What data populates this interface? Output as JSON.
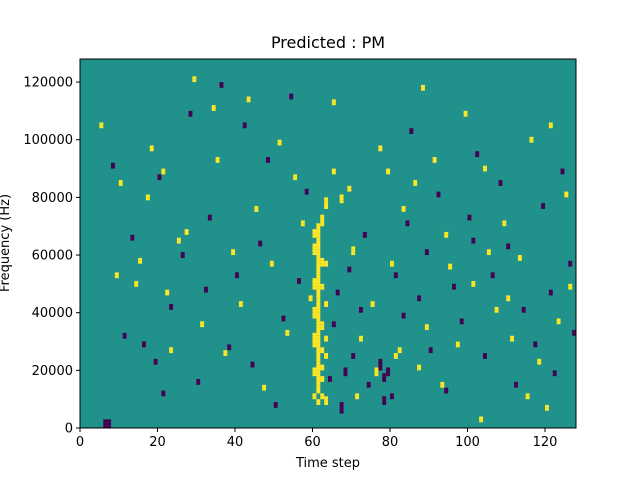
{
  "chart_data": {
    "type": "heatmap",
    "title": "Predicted : PM",
    "xlabel": "Time step",
    "ylabel": "Frequency (Hz)",
    "xlim": [
      0,
      128
    ],
    "ylim": [
      0,
      128000
    ],
    "x_ticks": [
      "0",
      "20",
      "40",
      "60",
      "80",
      "100",
      "120"
    ],
    "x_tick_values": [
      0,
      20,
      40,
      60,
      80,
      100,
      120
    ],
    "y_ticks": [
      "0",
      "20000",
      "40000",
      "60000",
      "80000",
      "100000",
      "120000"
    ],
    "y_tick_values": [
      0,
      20000,
      40000,
      60000,
      80000,
      100000,
      120000
    ],
    "grid": false,
    "legend": "none",
    "n_time_steps": 128,
    "n_freq_bins": 128,
    "value_levels": [
      -1,
      0,
      1
    ],
    "colors": {
      "-1": "#440154",
      "0": "#21918c",
      "1": "#fde725"
    },
    "background_value": 0,
    "high_cells": [
      [
        5,
        104
      ],
      [
        5,
        105
      ],
      [
        9,
        52
      ],
      [
        9,
        53
      ],
      [
        10,
        84
      ],
      [
        10,
        85
      ],
      [
        14,
        49
      ],
      [
        14,
        50
      ],
      [
        15,
        57
      ],
      [
        15,
        58
      ],
      [
        17,
        79
      ],
      [
        17,
        80
      ],
      [
        18,
        96
      ],
      [
        18,
        97
      ],
      [
        21,
        88
      ],
      [
        21,
        89
      ],
      [
        22,
        46
      ],
      [
        22,
        47
      ],
      [
        23,
        26
      ],
      [
        23,
        27
      ],
      [
        25,
        64
      ],
      [
        25,
        65
      ],
      [
        27,
        67
      ],
      [
        27,
        68
      ],
      [
        29,
        120
      ],
      [
        29,
        121
      ],
      [
        31,
        35
      ],
      [
        31,
        36
      ],
      [
        34,
        110
      ],
      [
        34,
        111
      ],
      [
        35,
        92
      ],
      [
        35,
        93
      ],
      [
        37,
        25
      ],
      [
        37,
        26
      ],
      [
        39,
        60
      ],
      [
        39,
        61
      ],
      [
        41,
        42
      ],
      [
        41,
        43
      ],
      [
        43,
        113
      ],
      [
        43,
        114
      ],
      [
        45,
        75
      ],
      [
        45,
        76
      ],
      [
        47,
        13
      ],
      [
        47,
        14
      ],
      [
        49,
        56
      ],
      [
        49,
        57
      ],
      [
        51,
        98
      ],
      [
        51,
        99
      ],
      [
        53,
        32
      ],
      [
        53,
        33
      ],
      [
        55,
        86
      ],
      [
        55,
        87
      ],
      [
        57,
        70
      ],
      [
        57,
        71
      ],
      [
        59,
        44
      ],
      [
        59,
        45
      ],
      [
        60,
        10
      ],
      [
        60,
        11
      ],
      [
        60,
        18
      ],
      [
        60,
        19
      ],
      [
        60,
        20
      ],
      [
        60,
        28
      ],
      [
        60,
        29
      ],
      [
        60,
        30
      ],
      [
        60,
        31
      ],
      [
        60,
        32
      ],
      [
        60,
        38
      ],
      [
        60,
        39
      ],
      [
        60,
        40
      ],
      [
        60,
        41
      ],
      [
        60,
        48
      ],
      [
        60,
        49
      ],
      [
        60,
        50
      ],
      [
        60,
        51
      ],
      [
        60,
        60
      ],
      [
        60,
        61
      ],
      [
        60,
        62
      ],
      [
        60,
        63
      ],
      [
        60,
        66
      ],
      [
        60,
        67
      ],
      [
        60,
        68
      ],
      [
        61,
        8
      ],
      [
        61,
        9
      ],
      [
        61,
        12
      ],
      [
        61,
        13
      ],
      [
        61,
        14
      ],
      [
        61,
        15
      ],
      [
        61,
        16
      ],
      [
        61,
        17
      ],
      [
        61,
        18
      ],
      [
        61,
        19
      ],
      [
        61,
        20
      ],
      [
        61,
        21
      ],
      [
        61,
        22
      ],
      [
        61,
        23
      ],
      [
        61,
        24
      ],
      [
        61,
        25
      ],
      [
        61,
        26
      ],
      [
        61,
        27
      ],
      [
        61,
        28
      ],
      [
        61,
        29
      ],
      [
        61,
        30
      ],
      [
        61,
        31
      ],
      [
        61,
        32
      ],
      [
        61,
        33
      ],
      [
        61,
        34
      ],
      [
        61,
        35
      ],
      [
        61,
        36
      ],
      [
        61,
        37
      ],
      [
        61,
        38
      ],
      [
        61,
        39
      ],
      [
        61,
        40
      ],
      [
        61,
        41
      ],
      [
        61,
        42
      ],
      [
        61,
        43
      ],
      [
        61,
        44
      ],
      [
        61,
        45
      ],
      [
        61,
        46
      ],
      [
        61,
        47
      ],
      [
        61,
        48
      ],
      [
        61,
        49
      ],
      [
        61,
        50
      ],
      [
        61,
        51
      ],
      [
        61,
        52
      ],
      [
        61,
        53
      ],
      [
        61,
        54
      ],
      [
        61,
        55
      ],
      [
        61,
        56
      ],
      [
        61,
        57
      ],
      [
        61,
        58
      ],
      [
        61,
        59
      ],
      [
        61,
        60
      ],
      [
        61,
        61
      ],
      [
        61,
        62
      ],
      [
        61,
        63
      ],
      [
        61,
        64
      ],
      [
        61,
        65
      ],
      [
        61,
        66
      ],
      [
        61,
        67
      ],
      [
        61,
        68
      ],
      [
        61,
        69
      ],
      [
        61,
        70
      ],
      [
        62,
        10
      ],
      [
        62,
        11
      ],
      [
        62,
        16
      ],
      [
        62,
        17
      ],
      [
        62,
        20
      ],
      [
        62,
        21
      ],
      [
        62,
        26
      ],
      [
        62,
        27
      ],
      [
        62,
        34
      ],
      [
        62,
        35
      ],
      [
        62,
        36
      ],
      [
        62,
        48
      ],
      [
        62,
        49
      ],
      [
        62,
        56
      ],
      [
        62,
        57
      ],
      [
        62,
        58
      ],
      [
        62,
        70
      ],
      [
        62,
        71
      ],
      [
        62,
        72
      ],
      [
        62,
        73
      ],
      [
        63,
        8
      ],
      [
        63,
        9
      ],
      [
        63,
        10
      ],
      [
        63,
        24
      ],
      [
        63,
        25
      ],
      [
        63,
        30
      ],
      [
        63,
        31
      ],
      [
        63,
        42
      ],
      [
        63,
        43
      ],
      [
        63,
        56
      ],
      [
        63,
        57
      ],
      [
        63,
        76
      ],
      [
        63,
        77
      ],
      [
        63,
        78
      ],
      [
        63,
        79
      ],
      [
        65,
        88
      ],
      [
        65,
        89
      ],
      [
        65,
        112
      ],
      [
        65,
        113
      ],
      [
        67,
        78
      ],
      [
        67,
        79
      ],
      [
        67,
        80
      ],
      [
        69,
        82
      ],
      [
        69,
        83
      ],
      [
        70,
        60
      ],
      [
        70,
        61
      ],
      [
        70,
        62
      ],
      [
        71,
        10
      ],
      [
        71,
        11
      ],
      [
        72,
        30
      ],
      [
        72,
        31
      ],
      [
        75,
        42
      ],
      [
        75,
        43
      ],
      [
        76,
        18
      ],
      [
        76,
        19
      ],
      [
        76,
        20
      ],
      [
        77,
        96
      ],
      [
        77,
        97
      ],
      [
        79,
        88
      ],
      [
        79,
        89
      ],
      [
        80,
        56
      ],
      [
        80,
        57
      ],
      [
        81,
        24
      ],
      [
        81,
        25
      ],
      [
        82,
        26
      ],
      [
        82,
        27
      ],
      [
        83,
        75
      ],
      [
        83,
        76
      ],
      [
        86,
        84
      ],
      [
        86,
        85
      ],
      [
        87,
        20
      ],
      [
        87,
        21
      ],
      [
        88,
        117
      ],
      [
        88,
        118
      ],
      [
        89,
        34
      ],
      [
        89,
        35
      ],
      [
        91,
        92
      ],
      [
        91,
        93
      ],
      [
        93,
        14
      ],
      [
        93,
        15
      ],
      [
        94,
        66
      ],
      [
        94,
        67
      ],
      [
        95,
        55
      ],
      [
        95,
        56
      ],
      [
        97,
        28
      ],
      [
        97,
        29
      ],
      [
        99,
        108
      ],
      [
        99,
        109
      ],
      [
        101,
        49
      ],
      [
        101,
        50
      ],
      [
        103,
        2
      ],
      [
        103,
        3
      ],
      [
        104,
        89
      ],
      [
        104,
        90
      ],
      [
        105,
        60
      ],
      [
        105,
        61
      ],
      [
        107,
        40
      ],
      [
        107,
        41
      ],
      [
        109,
        70
      ],
      [
        109,
        71
      ],
      [
        110,
        44
      ],
      [
        110,
        45
      ],
      [
        111,
        30
      ],
      [
        111,
        31
      ],
      [
        113,
        58
      ],
      [
        113,
        59
      ],
      [
        115,
        10
      ],
      [
        115,
        11
      ],
      [
        116,
        99
      ],
      [
        116,
        100
      ],
      [
        118,
        22
      ],
      [
        118,
        23
      ],
      [
        120,
        6
      ],
      [
        120,
        7
      ],
      [
        121,
        104
      ],
      [
        121,
        105
      ],
      [
        123,
        36
      ],
      [
        123,
        37
      ],
      [
        125,
        80
      ],
      [
        125,
        81
      ],
      [
        126,
        48
      ],
      [
        126,
        49
      ]
    ],
    "low_cells": [
      [
        6,
        0
      ],
      [
        6,
        1
      ],
      [
        6,
        2
      ],
      [
        7,
        0
      ],
      [
        7,
        1
      ],
      [
        7,
        2
      ],
      [
        8,
        90
      ],
      [
        8,
        91
      ],
      [
        11,
        31
      ],
      [
        11,
        32
      ],
      [
        13,
        65
      ],
      [
        13,
        66
      ],
      [
        16,
        28
      ],
      [
        16,
        29
      ],
      [
        19,
        22
      ],
      [
        19,
        23
      ],
      [
        20,
        86
      ],
      [
        20,
        87
      ],
      [
        21,
        11
      ],
      [
        21,
        12
      ],
      [
        23,
        41
      ],
      [
        23,
        42
      ],
      [
        26,
        59
      ],
      [
        26,
        60
      ],
      [
        28,
        108
      ],
      [
        28,
        109
      ],
      [
        30,
        15
      ],
      [
        30,
        16
      ],
      [
        32,
        47
      ],
      [
        32,
        48
      ],
      [
        33,
        72
      ],
      [
        33,
        73
      ],
      [
        36,
        118
      ],
      [
        36,
        119
      ],
      [
        38,
        27
      ],
      [
        38,
        28
      ],
      [
        40,
        52
      ],
      [
        40,
        53
      ],
      [
        42,
        104
      ],
      [
        42,
        105
      ],
      [
        44,
        21
      ],
      [
        44,
        22
      ],
      [
        46,
        63
      ],
      [
        46,
        64
      ],
      [
        48,
        92
      ],
      [
        48,
        93
      ],
      [
        50,
        7
      ],
      [
        50,
        8
      ],
      [
        52,
        37
      ],
      [
        52,
        38
      ],
      [
        54,
        114
      ],
      [
        54,
        115
      ],
      [
        56,
        50
      ],
      [
        56,
        51
      ],
      [
        58,
        81
      ],
      [
        58,
        82
      ],
      [
        64,
        16
      ],
      [
        64,
        17
      ],
      [
        65,
        35
      ],
      [
        65,
        36
      ],
      [
        66,
        46
      ],
      [
        66,
        47
      ],
      [
        67,
        5
      ],
      [
        67,
        6
      ],
      [
        67,
        7
      ],
      [
        67,
        8
      ],
      [
        68,
        18
      ],
      [
        68,
        19
      ],
      [
        68,
        20
      ],
      [
        69,
        54
      ],
      [
        69,
        55
      ],
      [
        70,
        24
      ],
      [
        70,
        25
      ],
      [
        72,
        40
      ],
      [
        72,
        41
      ],
      [
        73,
        66
      ],
      [
        73,
        67
      ],
      [
        74,
        14
      ],
      [
        74,
        15
      ],
      [
        77,
        20
      ],
      [
        77,
        21
      ],
      [
        77,
        22
      ],
      [
        77,
        23
      ],
      [
        78,
        8
      ],
      [
        78,
        9
      ],
      [
        78,
        10
      ],
      [
        78,
        16
      ],
      [
        78,
        17
      ],
      [
        78,
        18
      ],
      [
        79,
        18
      ],
      [
        79,
        19
      ],
      [
        79,
        20
      ],
      [
        80,
        10
      ],
      [
        80,
        11
      ],
      [
        81,
        52
      ],
      [
        81,
        53
      ],
      [
        83,
        38
      ],
      [
        83,
        39
      ],
      [
        84,
        70
      ],
      [
        84,
        71
      ],
      [
        85,
        102
      ],
      [
        85,
        103
      ],
      [
        87,
        44
      ],
      [
        87,
        45
      ],
      [
        89,
        60
      ],
      [
        89,
        61
      ],
      [
        90,
        26
      ],
      [
        90,
        27
      ],
      [
        92,
        80
      ],
      [
        92,
        81
      ],
      [
        94,
        12
      ],
      [
        94,
        13
      ],
      [
        96,
        48
      ],
      [
        96,
        49
      ],
      [
        98,
        36
      ],
      [
        98,
        37
      ],
      [
        100,
        72
      ],
      [
        100,
        73
      ],
      [
        101,
        64
      ],
      [
        101,
        65
      ],
      [
        102,
        94
      ],
      [
        102,
        95
      ],
      [
        104,
        24
      ],
      [
        104,
        25
      ],
      [
        106,
        52
      ],
      [
        106,
        53
      ],
      [
        108,
        84
      ],
      [
        108,
        85
      ],
      [
        110,
        62
      ],
      [
        110,
        63
      ],
      [
        112,
        14
      ],
      [
        112,
        15
      ],
      [
        114,
        40
      ],
      [
        114,
        41
      ],
      [
        117,
        28
      ],
      [
        117,
        29
      ],
      [
        119,
        76
      ],
      [
        119,
        77
      ],
      [
        121,
        46
      ],
      [
        121,
        47
      ],
      [
        122,
        18
      ],
      [
        122,
        19
      ],
      [
        124,
        88
      ],
      [
        124,
        89
      ],
      [
        126,
        56
      ],
      [
        126,
        57
      ],
      [
        127,
        32
      ],
      [
        127,
        33
      ]
    ]
  }
}
